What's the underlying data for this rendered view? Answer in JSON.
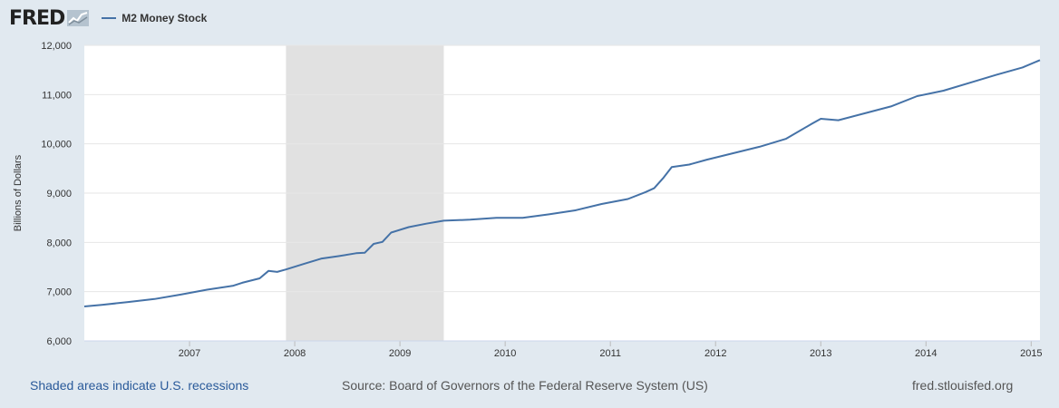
{
  "header": {
    "logo_text": "FRED",
    "legend_label": "M2 Money Stock"
  },
  "footer": {
    "recession_note": "Shaded areas indicate U.S. recessions",
    "source": "Source: Board of Governors of the Federal Reserve System (US)",
    "site": "fred.stlouisfed.org"
  },
  "colors": {
    "series": "#4572a7",
    "recession_shade": "#e1e1e1",
    "background": "#e1e9f0",
    "plot_background": "#ffffff",
    "gridline": "#e6e6e6"
  },
  "chart_data": {
    "type": "line",
    "ylabel": "Billions of Dollars",
    "xlabel": "",
    "xlim": [
      "2006-01",
      "2015-02"
    ],
    "ylim": [
      6000,
      12000
    ],
    "y_ticks": [
      "6,000",
      "7,000",
      "8,000",
      "9,000",
      "10,000",
      "11,000",
      "12,000"
    ],
    "x_ticks": [
      "2007",
      "2008",
      "2009",
      "2010",
      "2011",
      "2012",
      "2013",
      "2014",
      "2015"
    ],
    "grid": true,
    "recessions": [
      {
        "start": "2007-12",
        "end": "2009-06"
      }
    ],
    "series": [
      {
        "name": "M2 Money Stock",
        "points": [
          [
            "2006-01",
            6700
          ],
          [
            "2006-03",
            6730
          ],
          [
            "2006-06",
            6790
          ],
          [
            "2006-09",
            6850
          ],
          [
            "2006-12",
            6940
          ],
          [
            "2007-03",
            7040
          ],
          [
            "2007-06",
            7120
          ],
          [
            "2007-07",
            7180
          ],
          [
            "2007-09",
            7270
          ],
          [
            "2007-10",
            7420
          ],
          [
            "2007-11",
            7400
          ],
          [
            "2007-12",
            7450
          ],
          [
            "2008-02",
            7560
          ],
          [
            "2008-04",
            7670
          ],
          [
            "2008-06",
            7720
          ],
          [
            "2008-08",
            7780
          ],
          [
            "2008-09",
            7790
          ],
          [
            "2008-10",
            7970
          ],
          [
            "2008-11",
            8010
          ],
          [
            "2008-12",
            8200
          ],
          [
            "2009-02",
            8310
          ],
          [
            "2009-04",
            8380
          ],
          [
            "2009-06",
            8440
          ],
          [
            "2009-09",
            8460
          ],
          [
            "2009-12",
            8500
          ],
          [
            "2010-03",
            8500
          ],
          [
            "2010-06",
            8570
          ],
          [
            "2010-09",
            8650
          ],
          [
            "2010-12",
            8780
          ],
          [
            "2011-03",
            8880
          ],
          [
            "2011-05",
            9020
          ],
          [
            "2011-06",
            9100
          ],
          [
            "2011-07",
            9300
          ],
          [
            "2011-08",
            9530
          ],
          [
            "2011-10",
            9580
          ],
          [
            "2011-12",
            9680
          ],
          [
            "2012-03",
            9810
          ],
          [
            "2012-06",
            9940
          ],
          [
            "2012-09",
            10100
          ],
          [
            "2012-12",
            10410
          ],
          [
            "2013-01",
            10510
          ],
          [
            "2013-03",
            10480
          ],
          [
            "2013-06",
            10620
          ],
          [
            "2013-09",
            10760
          ],
          [
            "2013-12",
            10970
          ],
          [
            "2014-03",
            11080
          ],
          [
            "2014-06",
            11240
          ],
          [
            "2014-09",
            11400
          ],
          [
            "2014-12",
            11550
          ],
          [
            "2015-02",
            11700
          ]
        ]
      }
    ]
  }
}
